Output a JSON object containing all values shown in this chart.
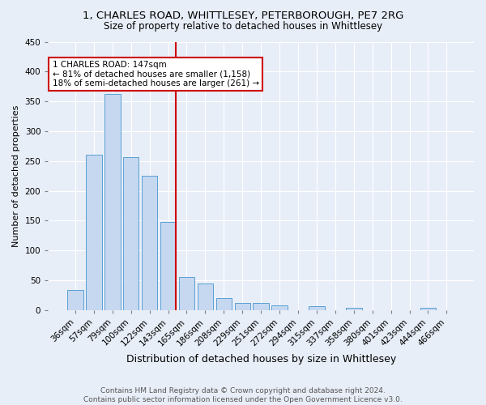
{
  "title1": "1, CHARLES ROAD, WHITTLESEY, PETERBOROUGH, PE7 2RG",
  "title2": "Size of property relative to detached houses in Whittlesey",
  "xlabel": "Distribution of detached houses by size in Whittlesey",
  "ylabel": "Number of detached properties",
  "categories": [
    "36sqm",
    "57sqm",
    "79sqm",
    "100sqm",
    "122sqm",
    "143sqm",
    "165sqm",
    "186sqm",
    "208sqm",
    "229sqm",
    "251sqm",
    "272sqm",
    "294sqm",
    "315sqm",
    "337sqm",
    "358sqm",
    "380sqm",
    "401sqm",
    "423sqm",
    "444sqm",
    "466sqm"
  ],
  "values": [
    33,
    260,
    363,
    257,
    225,
    148,
    56,
    45,
    20,
    12,
    12,
    8,
    0,
    7,
    0,
    4,
    0,
    0,
    0,
    4,
    0
  ],
  "bar_color": "#c5d8f0",
  "bar_edge_color": "#5a9fd4",
  "vline_color": "#cc0000",
  "annotation_text": "1 CHARLES ROAD: 147sqm\n← 81% of detached houses are smaller (1,158)\n18% of semi-detached houses are larger (261) →",
  "annotation_box_color": "white",
  "annotation_box_edge_color": "#cc0000",
  "background_color": "#e8eef8",
  "plot_bg_color": "#e8eef8",
  "footer": "Contains HM Land Registry data © Crown copyright and database right 2024.\nContains public sector information licensed under the Open Government Licence v3.0.",
  "ylim": [
    0,
    450
  ],
  "yticks": [
    0,
    50,
    100,
    150,
    200,
    250,
    300,
    350,
    400,
    450
  ],
  "title1_fontsize": 9.5,
  "title2_fontsize": 8.5,
  "xlabel_fontsize": 9,
  "ylabel_fontsize": 8,
  "tick_fontsize": 7.5,
  "footer_fontsize": 6.5,
  "annotation_fontsize": 7.5
}
